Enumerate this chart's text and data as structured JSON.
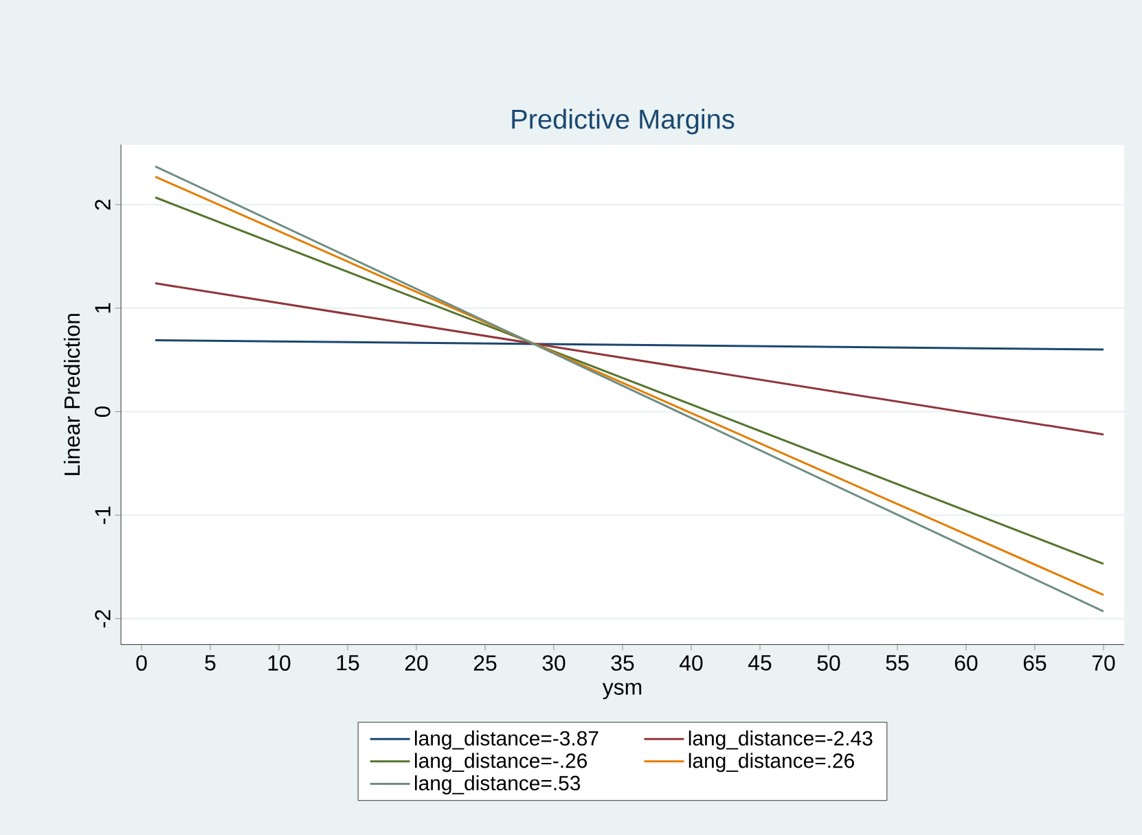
{
  "chart_data": {
    "type": "line",
    "title": "Predictive Margins",
    "xlabel": "ysm",
    "ylabel": "Linear Prediction",
    "x": [
      1,
      70
    ],
    "series": [
      {
        "name": "lang_distance=-3.87",
        "color": "#1a476f",
        "values": [
          0.69,
          0.6
        ]
      },
      {
        "name": "lang_distance=-2.43",
        "color": "#90353b",
        "values": [
          1.24,
          -0.22
        ]
      },
      {
        "name": "lang_distance=-.26",
        "color": "#55752f",
        "values": [
          2.07,
          -1.47
        ]
      },
      {
        "name": "lang_distance=.26",
        "color": "#e37e00",
        "values": [
          2.27,
          -1.77
        ]
      },
      {
        "name": "lang_distance=.53",
        "color": "#6e8e84",
        "values": [
          2.37,
          -1.93
        ]
      }
    ],
    "xlim": [
      -1.5,
      71.5
    ],
    "ylim": [
      -2.25,
      2.58
    ],
    "xticks": [
      0,
      5,
      10,
      15,
      20,
      25,
      30,
      35,
      40,
      45,
      50,
      55,
      60,
      65,
      70
    ],
    "yticks": [
      -2,
      -1,
      0,
      1,
      2
    ],
    "grid": "y",
    "legend": "bottom",
    "marker": "none",
    "line_style": "solid"
  }
}
